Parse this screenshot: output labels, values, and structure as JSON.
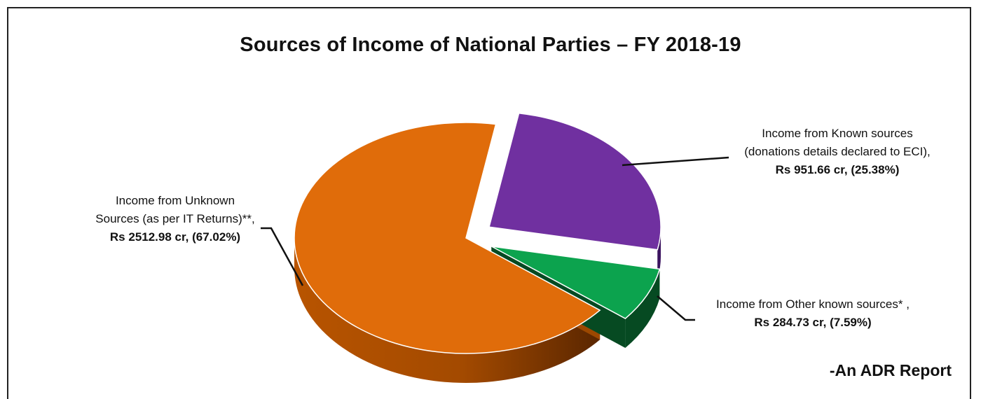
{
  "chart_data": {
    "type": "pie",
    "title": "Sources of Income of National Parties – FY 2018-19",
    "slices": [
      {
        "name_lines": [
          "Income from Unknown",
          "Sources (as per IT Returns)**,"
        ],
        "value_label": "Rs 2512.98 cr, (67.02%)",
        "value": 2512.98,
        "percent": 67.02,
        "color": "#E06C0A",
        "side_color": "#8A3E00",
        "exploded": false
      },
      {
        "name_lines": [
          "Income from Known sources",
          "(donations details declared to ECI),"
        ],
        "value_label": "Rs 951.66 cr, (25.38%)",
        "value": 951.66,
        "percent": 25.38,
        "color": "#7030A0",
        "side_color": "#3C1560",
        "exploded": true
      },
      {
        "name_lines": [
          "Income from Other known sources* ,"
        ],
        "value_label": "Rs 284.73 cr, (7.59%)",
        "value": 284.73,
        "percent": 7.59,
        "color": "#0CA34E",
        "side_color": "#064A22",
        "exploded": true
      }
    ],
    "source_note": "-An ADR Report"
  }
}
